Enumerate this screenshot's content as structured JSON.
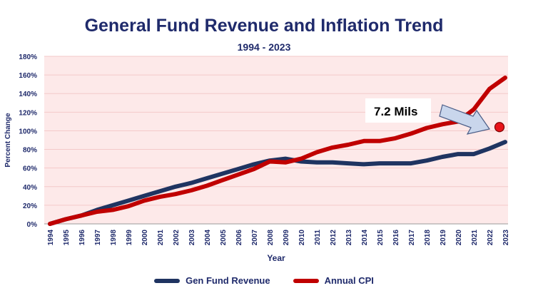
{
  "chart_data": {
    "type": "line",
    "title": "General Fund Revenue and Inflation Trend",
    "subtitle": "1994 - 2023",
    "xlabel": "Year",
    "ylabel": "Percent Change",
    "x": [
      "1994",
      "1995",
      "1996",
      "1997",
      "1998",
      "1999",
      "2000",
      "2001",
      "2002",
      "2003",
      "2004",
      "2005",
      "2006",
      "2007",
      "2008",
      "2009",
      "2010",
      "2011",
      "2012",
      "2013",
      "2014",
      "2015",
      "2016",
      "2017",
      "2018",
      "2019",
      "2020",
      "2021",
      "2022",
      "2023"
    ],
    "ylim": [
      0,
      180
    ],
    "yticks": [
      "0%",
      "20%",
      "40%",
      "60%",
      "80%",
      "100%",
      "120%",
      "140%",
      "160%",
      "180%"
    ],
    "grid": true,
    "legend_position": "bottom",
    "series": [
      {
        "name": "Gen Fund Revenue",
        "color": "#1f3461",
        "values": [
          0,
          5,
          9,
          15,
          20,
          25,
          30,
          35,
          40,
          44,
          49,
          54,
          59,
          64,
          68,
          70,
          67,
          66,
          66,
          65,
          64,
          65,
          65,
          65,
          68,
          72,
          75,
          75,
          81,
          88
        ]
      },
      {
        "name": "Annual CPI",
        "color": "#c00000",
        "values": [
          0,
          5,
          9,
          13,
          15,
          19,
          25,
          29,
          32,
          36,
          41,
          47,
          53,
          59,
          67,
          66,
          70,
          77,
          82,
          85,
          89,
          89,
          92,
          97,
          103,
          107,
          110,
          123,
          145,
          157
        ]
      }
    ],
    "annotation": {
      "text": "7.2 Mils",
      "point": {
        "x": "2023",
        "y": 104
      },
      "point_color": "#e8141a"
    },
    "plot_background": "#fde9e9"
  }
}
